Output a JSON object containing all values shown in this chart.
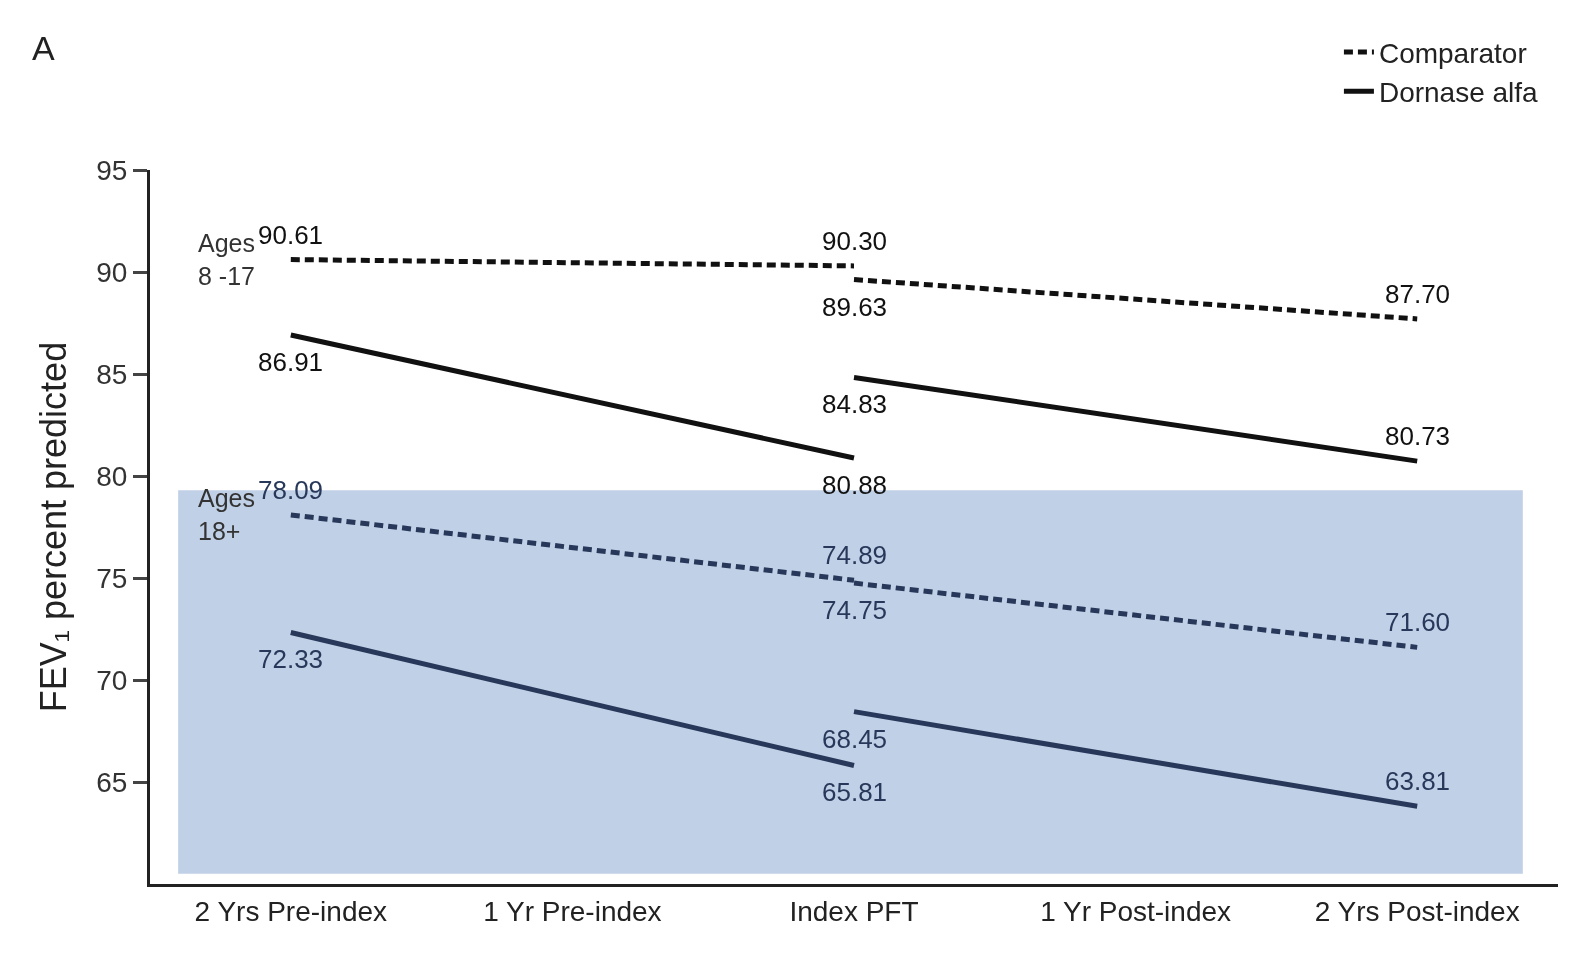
{
  "chart_data": {
    "type": "line",
    "ylabel": "FEV₁ percent predicted",
    "categories": [
      "2 Yrs Pre-index",
      "1 Yr Pre-index",
      "Index PFT",
      "1 Yr Post-index",
      "2 Yrs Post-index"
    ],
    "series": [
      {
        "name": "Comparator",
        "color": "#111111",
        "line_style": "dashed",
        "x": [
          "2 Yrs Pre-index",
          "Index PFT"
        ],
        "values": [
          90.61,
          90.3
        ],
        "value_labels": [
          "90.61",
          "90.30"
        ]
      },
      {
        "color": "#111111",
        "line_style": "dashed",
        "x": [
          "Index PFT",
          "2 Yrs Post-index"
        ],
        "values": [
          89.63,
          87.7
        ],
        "value_labels": [
          "89.63",
          "87.70"
        ]
      },
      {
        "name": "Dornase alfa",
        "color": "#111111",
        "line_style": "solid",
        "x": [
          "2 Yrs Pre-index",
          "Index PFT"
        ],
        "values": [
          86.91,
          80.88
        ],
        "value_labels": [
          "86.91",
          "80.88"
        ]
      },
      {
        "color": "#111111",
        "line_style": "solid",
        "x": [
          "Index PFT",
          "2 Yrs Post-index"
        ],
        "values": [
          84.83,
          80.73
        ],
        "value_labels": [
          "84.83",
          "80.73"
        ]
      },
      {
        "color": "#27385a",
        "line_style": "dashed",
        "x": [
          "2 Yrs Pre-index",
          "Index PFT"
        ],
        "values": [
          78.09,
          74.89
        ],
        "value_labels": [
          "78.09",
          "74.89"
        ]
      },
      {
        "color": "#27385a",
        "line_style": "dashed",
        "x": [
          "Index PFT",
          "2 Yrs Post-index"
        ],
        "values": [
          74.75,
          71.6
        ],
        "value_labels": [
          "74.75",
          "71.60"
        ]
      },
      {
        "color": "#27385a",
        "line_style": "solid",
        "x": [
          "2 Yrs Pre-index",
          "Index PFT"
        ],
        "values": [
          72.33,
          65.81
        ],
        "value_labels": [
          "72.33",
          "65.81"
        ]
      },
      {
        "color": "#27385a",
        "line_style": "solid",
        "x": [
          "Index PFT",
          "2 Yrs Post-index"
        ],
        "values": [
          68.45,
          63.81
        ],
        "value_labels": [
          "68.45",
          "63.81"
        ]
      }
    ],
    "ylim": [
      60,
      95
    ],
    "yticks": [
      65,
      70,
      75,
      80,
      85,
      90,
      95
    ],
    "grid": false,
    "legend": "top right",
    "marker": "none",
    "bands": [
      {
        "axis": "y",
        "from": 60.5,
        "to": 79.3,
        "color": "#c0d0e6"
      }
    ],
    "annotations": [
      "A",
      {
        "text": "Ages 8 -17",
        "x": "2 Yrs Pre-index",
        "y": 90.61
      },
      {
        "text": "Ages 18+",
        "x": "2 Yrs Pre-index",
        "y": 78.09
      }
    ]
  }
}
